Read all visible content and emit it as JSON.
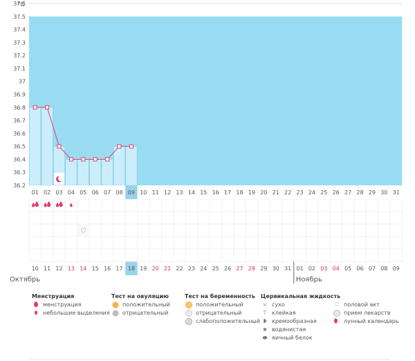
{
  "chart_data": {
    "type": "line",
    "ylabel": "°С",
    "y_ticks": [
      "37.6",
      "37.5",
      "37.4",
      "37.3",
      "37.2",
      "37.1",
      "37",
      "36.9",
      "36.8",
      "36.7",
      "36.6",
      "36.5",
      "36.4",
      "36.3",
      "36.2"
    ],
    "ylim": [
      36.2,
      37.6
    ],
    "cover_level": 37.5,
    "days": [
      "01",
      "02",
      "03",
      "04",
      "05",
      "06",
      "07",
      "08",
      "09",
      "10",
      "11",
      "12",
      "13",
      "14",
      "15",
      "16",
      "17",
      "18",
      "19",
      "20",
      "21",
      "22",
      "23",
      "24",
      "25",
      "26",
      "27",
      "28",
      "29",
      "30",
      "31"
    ],
    "current_day_index": 8,
    "temperatures": [
      36.8,
      36.8,
      36.5,
      36.4,
      36.4,
      36.4,
      36.4,
      36.5,
      36.5
    ],
    "moon_day_index": 2,
    "menstruation_heavy_days": [
      0,
      1,
      2
    ],
    "menstruation_light_days": [
      3
    ],
    "intercourse_day_index": 4,
    "dates": [
      "10",
      "11",
      "12",
      "13",
      "14",
      "15",
      "16",
      "17",
      "18",
      "19",
      "20",
      "21",
      "22",
      "23",
      "24",
      "25",
      "26",
      "27",
      "28",
      "29",
      "30",
      "31",
      "01",
      "02",
      "03",
      "04",
      "05",
      "06",
      "07",
      "08",
      "09"
    ],
    "dates_red": [
      3,
      4,
      10,
      11,
      17,
      18,
      24,
      25
    ],
    "today_date_index": 8,
    "month_start": "Октябрь",
    "month_next": "Ноябрь",
    "month_next_index": 22,
    "colors": {
      "fill": "#99dcf2",
      "bar": "#cceefc",
      "bar_border": "#7ccbe8",
      "line": "#e33a6b",
      "grid": "#f0f0f0",
      "current_day_bg": "#99d3ea",
      "red_date": "#d9305c",
      "text": "#555555"
    }
  },
  "legend": {
    "menstruation": {
      "title": "Менструация",
      "items": [
        {
          "icon": "drop-icon",
          "label": "менструация"
        },
        {
          "icon": "small-drop-icon",
          "label": "небольшие выделения"
        }
      ]
    },
    "ovulation_test": {
      "title": "Тест на овуляцию",
      "items": [
        {
          "icon": "orange-circle-icon",
          "label": "положительный"
        },
        {
          "icon": "grey-circle-icon",
          "label": "отрицательный"
        }
      ]
    },
    "pregnancy_test": {
      "title": "Тест на беременность",
      "items": [
        {
          "icon": "positive-test-icon",
          "label": "положительный"
        },
        {
          "icon": "negative-test-icon",
          "label": "отрицательный"
        },
        {
          "icon": "weak-test-icon",
          "label": "слабоположительный"
        }
      ]
    },
    "cervical_fluid": {
      "title": "Цервикальная жидкость",
      "items": [
        {
          "icon": "x-icon",
          "symbol": "×",
          "label": "сухо"
        },
        {
          "icon": "sticky-icon",
          "symbol": "⊤",
          "label": "клейкая"
        },
        {
          "icon": "creamy-icon",
          "symbol": "❥",
          "label": "кремообразная"
        },
        {
          "icon": "watery-icon",
          "symbol": "●",
          "label": "водянистая"
        },
        {
          "icon": "egg-white-icon",
          "symbol": "⬬",
          "label": "яичный белок"
        }
      ]
    },
    "other": {
      "items": [
        {
          "icon": "heart-icon",
          "label": "половой акт"
        },
        {
          "icon": "pill-icon",
          "label": "прием лекарств"
        },
        {
          "icon": "moon-icon",
          "label": "лунный календарь"
        }
      ]
    }
  }
}
